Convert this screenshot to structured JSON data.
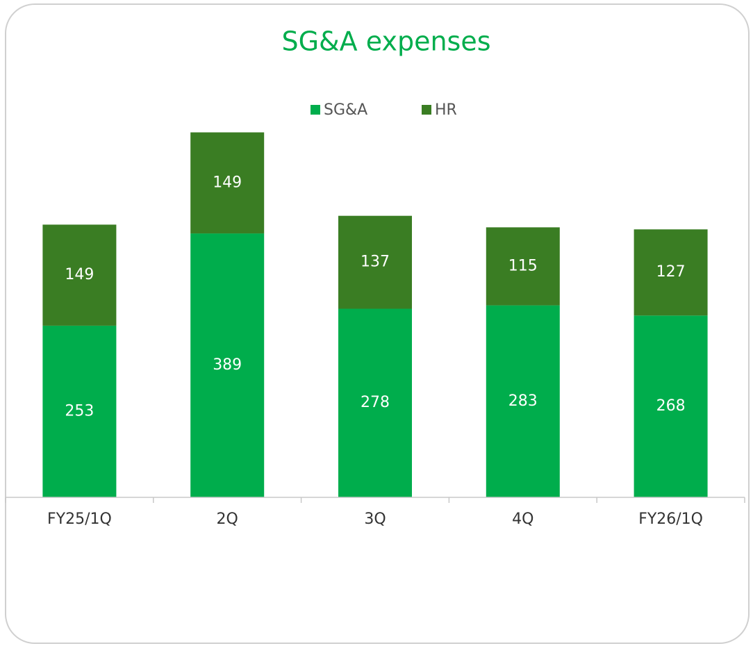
{
  "chart_data": {
    "type": "stacked_bar",
    "title": "SG&A expenses",
    "categories": [
      "FY25/1Q",
      "2Q",
      "3Q",
      "4Q",
      "FY26/1Q"
    ],
    "series": [
      {
        "name": "SG&A",
        "color": "#00ad4c",
        "values": [
          253,
          389,
          278,
          283,
          268
        ]
      },
      {
        "name": "HR",
        "color": "#3a7d23",
        "values": [
          149,
          149,
          137,
          115,
          127
        ]
      }
    ],
    "ylim": [
      0,
      600
    ],
    "legend": "top"
  }
}
